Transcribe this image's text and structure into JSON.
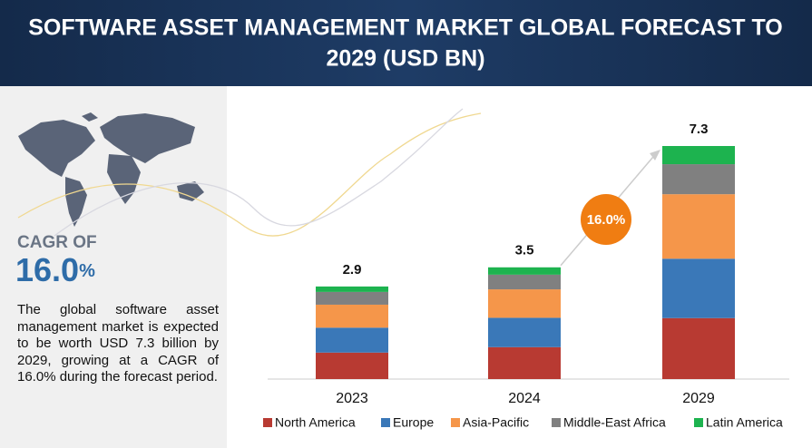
{
  "chart_data": {
    "type": "stacked_bar",
    "title": "SOFTWARE ASSET MANAGEMENT MARKET GLOBAL FORECAST TO 2029 (USD BN)",
    "categories": [
      "2023",
      "2024",
      "2029"
    ],
    "series": [
      {
        "name": "North America",
        "color": "#b83a32",
        "values": [
          0.83,
          1.0,
          1.91
        ]
      },
      {
        "name": "Europe",
        "color": "#3a78b8",
        "values": [
          0.78,
          0.92,
          1.86
        ]
      },
      {
        "name": "Asia-Pacific",
        "color": "#f5964a",
        "values": [
          0.72,
          0.89,
          2.02
        ]
      },
      {
        "name": "Middle-East Africa",
        "color": "#808080",
        "values": [
          0.4,
          0.46,
          0.94
        ]
      },
      {
        "name": "Latin America",
        "color": "#1db34f",
        "values": [
          0.17,
          0.23,
          0.57
        ]
      }
    ],
    "totals": [
      2.9,
      3.5,
      7.3
    ],
    "cagr_badge": "16.0%",
    "cagr_heading": "CAGR OF",
    "cagr_number": "16.0",
    "cagr_unit": "%",
    "description": "The global software asset management market is expected to be worth USD 7.3 billion by 2029, growing at a CAGR of 16.0% during the forecast period."
  }
}
